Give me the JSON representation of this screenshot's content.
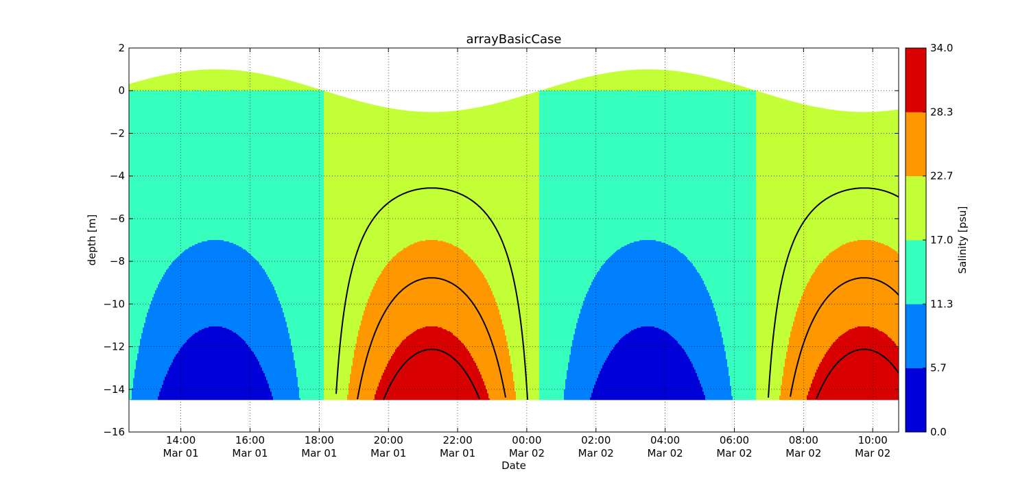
{
  "chart_data": {
    "type": "filled-contour",
    "title": "arrayBasicCase",
    "xlabel": "Date",
    "ylabel": "depth [m]",
    "colorbar_label": "Salinity [psu]",
    "x_range": [
      "2000-03-01 12:30",
      "2000-03-02 10:45"
    ],
    "ylim": [
      -16,
      2
    ],
    "yticks": [
      2,
      0,
      -2,
      -4,
      -6,
      -8,
      -10,
      -12,
      -14,
      -16
    ],
    "xticks": [
      {
        "time": "14:00",
        "date": "Mar 01"
      },
      {
        "time": "16:00",
        "date": "Mar 01"
      },
      {
        "time": "18:00",
        "date": "Mar 01"
      },
      {
        "time": "20:00",
        "date": "Mar 01"
      },
      {
        "time": "22:00",
        "date": "Mar 01"
      },
      {
        "time": "00:00",
        "date": "Mar 02"
      },
      {
        "time": "02:00",
        "date": "Mar 02"
      },
      {
        "time": "04:00",
        "date": "Mar 02"
      },
      {
        "time": "06:00",
        "date": "Mar 02"
      },
      {
        "time": "08:00",
        "date": "Mar 02"
      },
      {
        "time": "10:00",
        "date": "Mar 02"
      }
    ],
    "grid": true,
    "surface_elevation": {
      "mean": 0.0,
      "amplitude": 1.0,
      "period_hours": 12.5,
      "high_water": "Mar 01 15:00"
    },
    "bottom_depth": -14.5,
    "color_levels": [
      0.0,
      5.7,
      11.3,
      17.0,
      22.7,
      28.3,
      34.0
    ],
    "colorbar_ticks": [
      "34.0",
      "28.3",
      "22.7",
      "17.0",
      "11.3",
      "5.7",
      "0.0"
    ],
    "level_colors": [
      "#0000d8",
      "#0080ff",
      "#37ffbe",
      "#c3ff37",
      "#ff9800",
      "#d80000"
    ],
    "contour_lines_psu": [
      20.0,
      25.0,
      30.0
    ]
  }
}
